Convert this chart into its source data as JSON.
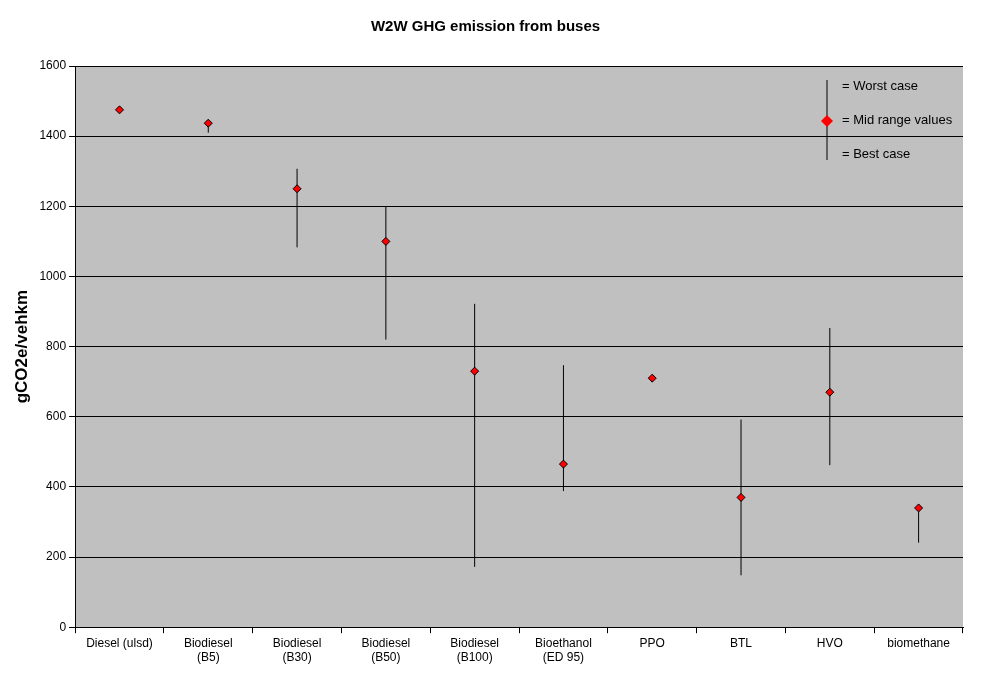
{
  "chart_data": {
    "type": "scatter",
    "title": "W2W GHG emission from buses",
    "ylabel": "gCO2e/vehkm",
    "categories": [
      "Diesel (ulsd)",
      "Biodiesel\n(B5)",
      "Biodiesel\n(B30)",
      "Biodiesel\n(B50)",
      "Biodiesel\n(B100)",
      "Bioethanol\n(ED 95)",
      "PPO",
      "BTL",
      "HVO",
      "biomethane"
    ],
    "values": [
      1475,
      1437,
      1250,
      1100,
      730,
      465,
      710,
      370,
      670,
      340
    ],
    "errors": [
      null,
      [
        1410,
        1437
      ],
      [
        1083,
        1307
      ],
      [
        820,
        1200
      ],
      [
        172,
        922
      ],
      [
        388,
        747
      ],
      null,
      [
        148,
        592
      ],
      [
        462,
        853
      ],
      [
        241,
        340
      ]
    ],
    "color": "#ff0000",
    "marker": "diamond",
    "ylim": [
      0,
      1600
    ],
    "yticks": [
      0,
      200,
      400,
      600,
      800,
      1000,
      1200,
      1400,
      1600
    ],
    "grid": "y",
    "annotations": [
      "= Worst case",
      "= Mid range values",
      "= Best case"
    ]
  }
}
